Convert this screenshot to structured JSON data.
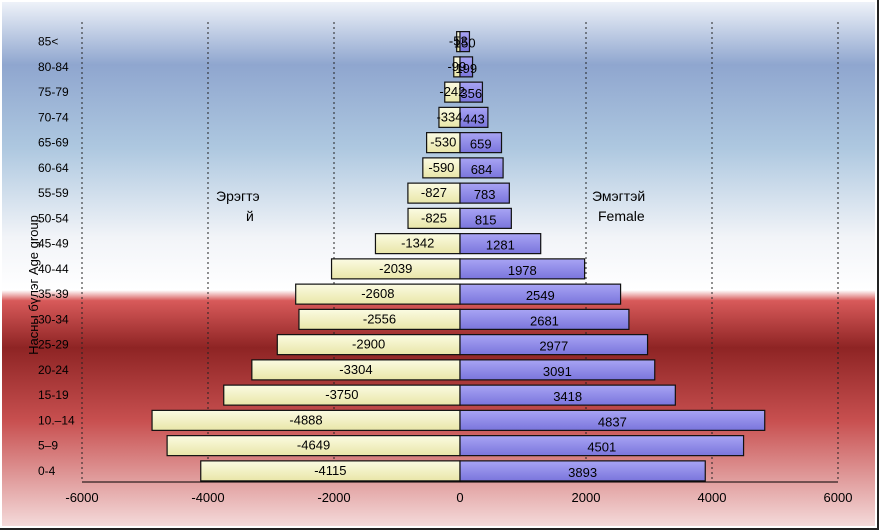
{
  "chart_data": {
    "type": "bar",
    "orientation": "horizontal",
    "categories": [
      "0-4",
      "5–9",
      "10.–14",
      "15-19",
      "20-24",
      "25-29",
      "30-34",
      "35-39",
      "40-44",
      "45-49",
      "50-54",
      "55-59",
      "60-64",
      "65-69",
      "70-74",
      "75-79",
      "80-84",
      "85<"
    ],
    "series": [
      {
        "name": "Эрэгтэй",
        "color": "#f2f0b8",
        "values": [
          -4115,
          -4649,
          -4888,
          -3750,
          -3304,
          -2900,
          -2556,
          -2608,
          -2039,
          -1342,
          -825,
          -827,
          -590,
          -530,
          -334,
          -242,
          -99,
          -53
        ]
      },
      {
        "name": "Эмэгтэй Female",
        "color": "#8b86e8",
        "values": [
          3893,
          4501,
          4837,
          3418,
          3091,
          2977,
          2681,
          2549,
          1978,
          1281,
          815,
          783,
          684,
          659,
          443,
          356,
          199,
          150
        ]
      }
    ],
    "xticks": [
      "-6000",
      "-4000",
      "-2000",
      "0",
      "2000",
      "4000",
      "6000"
    ],
    "xlim": [
      -6000,
      6000
    ],
    "ylabel": "Насны бүлэг Age group",
    "annotations": {
      "male_line1": "Эрэгтэ",
      "male_line2": "й",
      "female_line1": "Эмэгтэй",
      "female_line2": "Female"
    },
    "grid": "vertical dotted"
  }
}
